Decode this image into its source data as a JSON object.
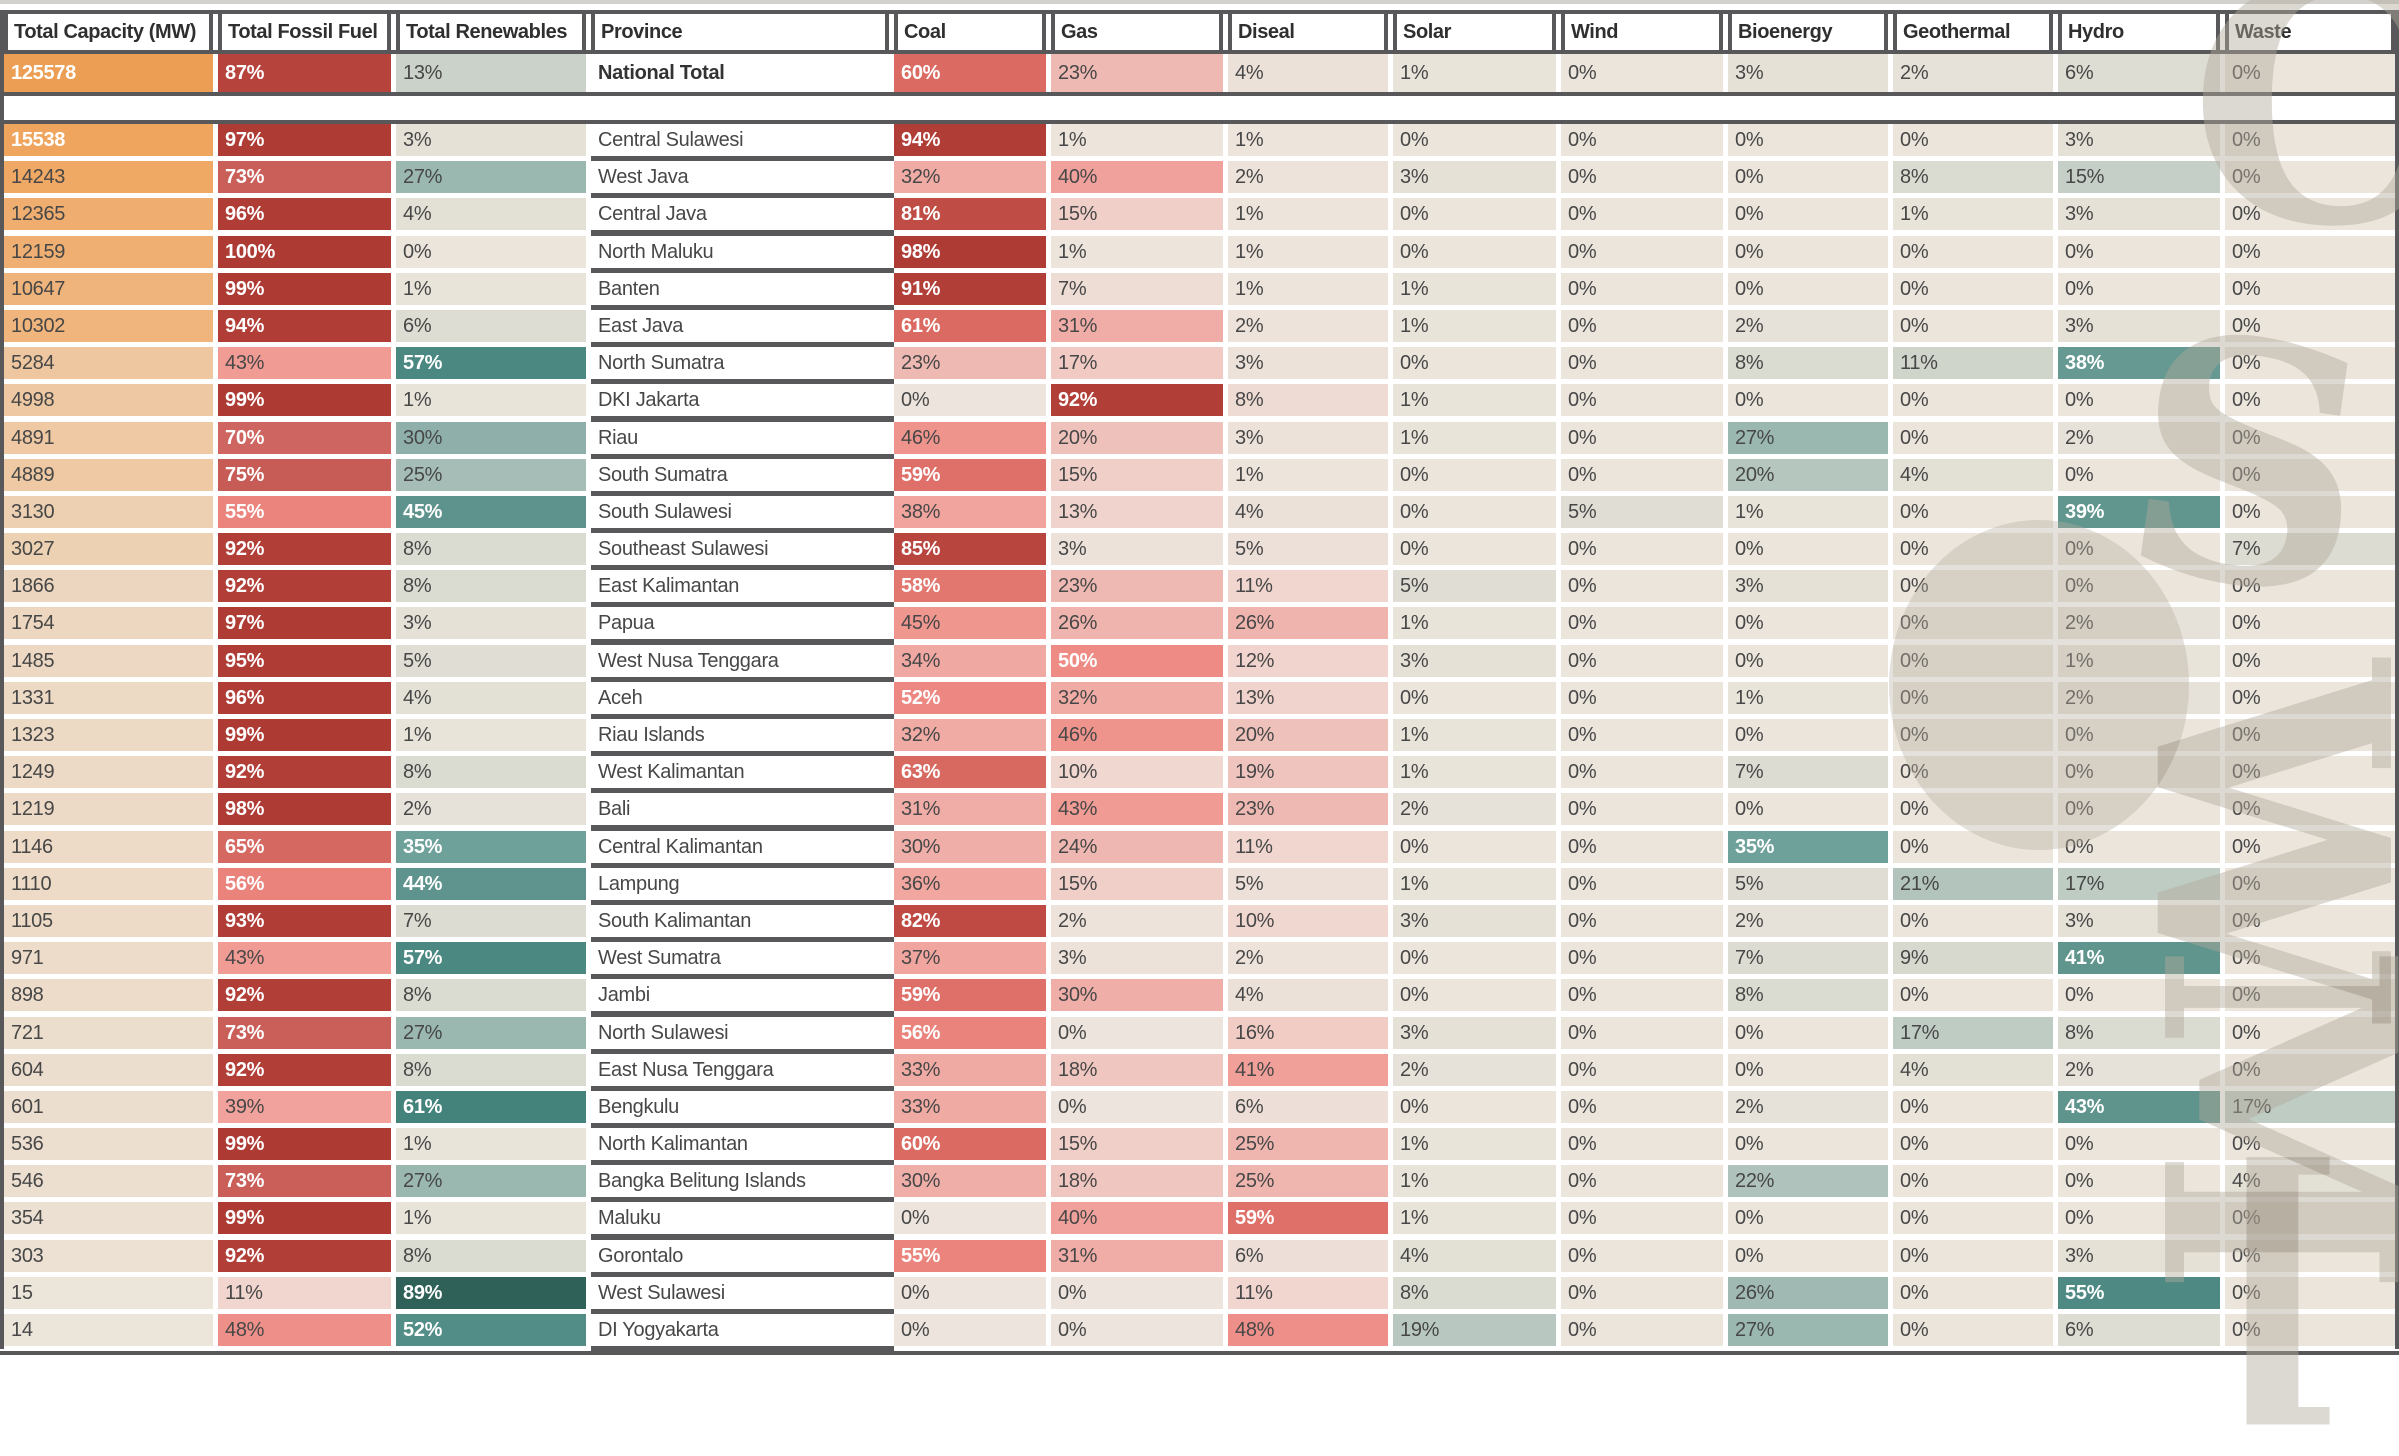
{
  "chart_data": {
    "type": "heatmap",
    "title": "Province power generation capacity and fuel mix heatmap table",
    "columns": [
      {
        "key": "capacity",
        "label": "Total Capacity (MW)",
        "scale": "orange",
        "unit": "MW"
      },
      {
        "key": "fossil",
        "label": "Total Fossil Fuel",
        "scale": "red",
        "unit": "%"
      },
      {
        "key": "renewables",
        "label": "Total Renewables",
        "scale": "teal",
        "unit": "%"
      },
      {
        "key": "province",
        "label": "Province",
        "scale": "none",
        "unit": ""
      },
      {
        "key": "coal",
        "label": "Coal",
        "scale": "red",
        "unit": "%"
      },
      {
        "key": "gas",
        "label": "Gas",
        "scale": "red",
        "unit": "%"
      },
      {
        "key": "diseal",
        "label": "Diseal",
        "scale": "red",
        "unit": "%"
      },
      {
        "key": "solar",
        "label": "Solar",
        "scale": "teal",
        "unit": "%"
      },
      {
        "key": "wind",
        "label": "Wind",
        "scale": "teal",
        "unit": "%"
      },
      {
        "key": "bioenergy",
        "label": "Bioenergy",
        "scale": "teal",
        "unit": "%"
      },
      {
        "key": "geothermal",
        "label": "Geothermal",
        "scale": "teal",
        "unit": "%"
      },
      {
        "key": "hydro",
        "label": "Hydro",
        "scale": "teal",
        "unit": "%"
      },
      {
        "key": "waste",
        "label": "Waste",
        "scale": "teal",
        "unit": "%"
      }
    ],
    "national_total": {
      "province": "National Total",
      "capacity": 125578,
      "fossil": 87,
      "renewables": 13,
      "coal": 60,
      "gas": 23,
      "diseal": 4,
      "solar": 1,
      "wind": 0,
      "bioenergy": 3,
      "geothermal": 2,
      "hydro": 6,
      "waste": 0
    },
    "rows": [
      {
        "province": "Central Sulawesi",
        "capacity": 15538,
        "fossil": 97,
        "renewables": 3,
        "coal": 94,
        "gas": 1,
        "diseal": 1,
        "solar": 0,
        "wind": 0,
        "bioenergy": 0,
        "geothermal": 0,
        "hydro": 3,
        "waste": 0
      },
      {
        "province": "West Java",
        "capacity": 14243,
        "fossil": 73,
        "renewables": 27,
        "coal": 32,
        "gas": 40,
        "diseal": 2,
        "solar": 3,
        "wind": 0,
        "bioenergy": 0,
        "geothermal": 8,
        "hydro": 15,
        "waste": 0
      },
      {
        "province": "Central Java",
        "capacity": 12365,
        "fossil": 96,
        "renewables": 4,
        "coal": 81,
        "gas": 15,
        "diseal": 1,
        "solar": 0,
        "wind": 0,
        "bioenergy": 0,
        "geothermal": 1,
        "hydro": 3,
        "waste": 0
      },
      {
        "province": "North Maluku",
        "capacity": 12159,
        "fossil": 100,
        "renewables": 0,
        "coal": 98,
        "gas": 1,
        "diseal": 1,
        "solar": 0,
        "wind": 0,
        "bioenergy": 0,
        "geothermal": 0,
        "hydro": 0,
        "waste": 0
      },
      {
        "province": "Banten",
        "capacity": 10647,
        "fossil": 99,
        "renewables": 1,
        "coal": 91,
        "gas": 7,
        "diseal": 1,
        "solar": 1,
        "wind": 0,
        "bioenergy": 0,
        "geothermal": 0,
        "hydro": 0,
        "waste": 0
      },
      {
        "province": "East Java",
        "capacity": 10302,
        "fossil": 94,
        "renewables": 6,
        "coal": 61,
        "gas": 31,
        "diseal": 2,
        "solar": 1,
        "wind": 0,
        "bioenergy": 2,
        "geothermal": 0,
        "hydro": 3,
        "waste": 0
      },
      {
        "province": "North Sumatra",
        "capacity": 5284,
        "fossil": 43,
        "renewables": 57,
        "coal": 23,
        "gas": 17,
        "diseal": 3,
        "solar": 0,
        "wind": 0,
        "bioenergy": 8,
        "geothermal": 11,
        "hydro": 38,
        "waste": 0
      },
      {
        "province": "DKI Jakarta",
        "capacity": 4998,
        "fossil": 99,
        "renewables": 1,
        "coal": 0,
        "gas": 92,
        "diseal": 8,
        "solar": 1,
        "wind": 0,
        "bioenergy": 0,
        "geothermal": 0,
        "hydro": 0,
        "waste": 0
      },
      {
        "province": "Riau",
        "capacity": 4891,
        "fossil": 70,
        "renewables": 30,
        "coal": 46,
        "gas": 20,
        "diseal": 3,
        "solar": 1,
        "wind": 0,
        "bioenergy": 27,
        "geothermal": 0,
        "hydro": 2,
        "waste": 0
      },
      {
        "province": "South Sumatra",
        "capacity": 4889,
        "fossil": 75,
        "renewables": 25,
        "coal": 59,
        "gas": 15,
        "diseal": 1,
        "solar": 0,
        "wind": 0,
        "bioenergy": 20,
        "geothermal": 4,
        "hydro": 0,
        "waste": 0
      },
      {
        "province": "South Sulawesi",
        "capacity": 3130,
        "fossil": 55,
        "renewables": 45,
        "coal": 38,
        "gas": 13,
        "diseal": 4,
        "solar": 0,
        "wind": 5,
        "bioenergy": 1,
        "geothermal": 0,
        "hydro": 39,
        "waste": 0
      },
      {
        "province": "Southeast Sulawesi",
        "capacity": 3027,
        "fossil": 92,
        "renewables": 8,
        "coal": 85,
        "gas": 3,
        "diseal": 5,
        "solar": 0,
        "wind": 0,
        "bioenergy": 0,
        "geothermal": 0,
        "hydro": 0,
        "waste": 7
      },
      {
        "province": "East Kalimantan",
        "capacity": 1866,
        "fossil": 92,
        "renewables": 8,
        "coal": 58,
        "gas": 23,
        "diseal": 11,
        "solar": 5,
        "wind": 0,
        "bioenergy": 3,
        "geothermal": 0,
        "hydro": 0,
        "waste": 0
      },
      {
        "province": "Papua",
        "capacity": 1754,
        "fossil": 97,
        "renewables": 3,
        "coal": 45,
        "gas": 26,
        "diseal": 26,
        "solar": 1,
        "wind": 0,
        "bioenergy": 0,
        "geothermal": 0,
        "hydro": 2,
        "waste": 0
      },
      {
        "province": "West Nusa Tenggara",
        "capacity": 1485,
        "fossil": 95,
        "renewables": 5,
        "coal": 34,
        "gas": 50,
        "diseal": 12,
        "solar": 3,
        "wind": 0,
        "bioenergy": 0,
        "geothermal": 0,
        "hydro": 1,
        "waste": 0
      },
      {
        "province": "Aceh",
        "capacity": 1331,
        "fossil": 96,
        "renewables": 4,
        "coal": 52,
        "gas": 32,
        "diseal": 13,
        "solar": 0,
        "wind": 0,
        "bioenergy": 1,
        "geothermal": 0,
        "hydro": 2,
        "waste": 0
      },
      {
        "province": "Riau Islands",
        "capacity": 1323,
        "fossil": 99,
        "renewables": 1,
        "coal": 32,
        "gas": 46,
        "diseal": 20,
        "solar": 1,
        "wind": 0,
        "bioenergy": 0,
        "geothermal": 0,
        "hydro": 0,
        "waste": 0
      },
      {
        "province": "West Kalimantan",
        "capacity": 1249,
        "fossil": 92,
        "renewables": 8,
        "coal": 63,
        "gas": 10,
        "diseal": 19,
        "solar": 1,
        "wind": 0,
        "bioenergy": 7,
        "geothermal": 0,
        "hydro": 0,
        "waste": 0
      },
      {
        "province": "Bali",
        "capacity": 1219,
        "fossil": 98,
        "renewables": 2,
        "coal": 31,
        "gas": 43,
        "diseal": 23,
        "solar": 2,
        "wind": 0,
        "bioenergy": 0,
        "geothermal": 0,
        "hydro": 0,
        "waste": 0
      },
      {
        "province": "Central Kalimantan",
        "capacity": 1146,
        "fossil": 65,
        "renewables": 35,
        "coal": 30,
        "gas": 24,
        "diseal": 11,
        "solar": 0,
        "wind": 0,
        "bioenergy": 35,
        "geothermal": 0,
        "hydro": 0,
        "waste": 0
      },
      {
        "province": "Lampung",
        "capacity": 1110,
        "fossil": 56,
        "renewables": 44,
        "coal": 36,
        "gas": 15,
        "diseal": 5,
        "solar": 1,
        "wind": 0,
        "bioenergy": 5,
        "geothermal": 21,
        "hydro": 17,
        "waste": 0
      },
      {
        "province": "South Kalimantan",
        "capacity": 1105,
        "fossil": 93,
        "renewables": 7,
        "coal": 82,
        "gas": 2,
        "diseal": 10,
        "solar": 3,
        "wind": 0,
        "bioenergy": 2,
        "geothermal": 0,
        "hydro": 3,
        "waste": 0
      },
      {
        "province": "West Sumatra",
        "capacity": 971,
        "fossil": 43,
        "renewables": 57,
        "coal": 37,
        "gas": 3,
        "diseal": 2,
        "solar": 0,
        "wind": 0,
        "bioenergy": 7,
        "geothermal": 9,
        "hydro": 41,
        "waste": 0
      },
      {
        "province": "Jambi",
        "capacity": 898,
        "fossil": 92,
        "renewables": 8,
        "coal": 59,
        "gas": 30,
        "diseal": 4,
        "solar": 0,
        "wind": 0,
        "bioenergy": 8,
        "geothermal": 0,
        "hydro": 0,
        "waste": 0
      },
      {
        "province": "North Sulawesi",
        "capacity": 721,
        "fossil": 73,
        "renewables": 27,
        "coal": 56,
        "gas": 0,
        "diseal": 16,
        "solar": 3,
        "wind": 0,
        "bioenergy": 0,
        "geothermal": 17,
        "hydro": 8,
        "waste": 0
      },
      {
        "province": "East Nusa Tenggara",
        "capacity": 604,
        "fossil": 92,
        "renewables": 8,
        "coal": 33,
        "gas": 18,
        "diseal": 41,
        "solar": 2,
        "wind": 0,
        "bioenergy": 0,
        "geothermal": 4,
        "hydro": 2,
        "waste": 0
      },
      {
        "province": "Bengkulu",
        "capacity": 601,
        "fossil": 39,
        "renewables": 61,
        "coal": 33,
        "gas": 0,
        "diseal": 6,
        "solar": 0,
        "wind": 0,
        "bioenergy": 2,
        "geothermal": 0,
        "hydro": 43,
        "waste": 17
      },
      {
        "province": "North Kalimantan",
        "capacity": 536,
        "fossil": 99,
        "renewables": 1,
        "coal": 60,
        "gas": 15,
        "diseal": 25,
        "solar": 1,
        "wind": 0,
        "bioenergy": 0,
        "geothermal": 0,
        "hydro": 0,
        "waste": 0
      },
      {
        "province": "Bangka Belitung Islands",
        "capacity": 546,
        "fossil": 73,
        "renewables": 27,
        "coal": 30,
        "gas": 18,
        "diseal": 25,
        "solar": 1,
        "wind": 0,
        "bioenergy": 22,
        "geothermal": 0,
        "hydro": 0,
        "waste": 4
      },
      {
        "province": "Maluku",
        "capacity": 354,
        "fossil": 99,
        "renewables": 1,
        "coal": 0,
        "gas": 40,
        "diseal": 59,
        "solar": 1,
        "wind": 0,
        "bioenergy": 0,
        "geothermal": 0,
        "hydro": 0,
        "waste": 0
      },
      {
        "province": "Gorontalo",
        "capacity": 303,
        "fossil": 92,
        "renewables": 8,
        "coal": 55,
        "gas": 31,
        "diseal": 6,
        "solar": 4,
        "wind": 0,
        "bioenergy": 0,
        "geothermal": 0,
        "hydro": 3,
        "waste": 0
      },
      {
        "province": "West Sulawesi",
        "capacity": 15,
        "fossil": 11,
        "renewables": 89,
        "coal": 0,
        "gas": 0,
        "diseal": 11,
        "solar": 8,
        "wind": 0,
        "bioenergy": 26,
        "geothermal": 0,
        "hydro": 55,
        "waste": 0
      },
      {
        "province": "DI Yogyakarta",
        "capacity": 14,
        "fossil": 48,
        "renewables": 52,
        "coal": 0,
        "gas": 0,
        "diseal": 48,
        "solar": 19,
        "wind": 0,
        "bioenergy": 27,
        "geothermal": 0,
        "hydro": 6,
        "waste": 0
      }
    ]
  },
  "colors": {
    "border": "#58585A",
    "topbar": "#D3D1CE",
    "text_dark": "#474747",
    "text_white": "#FFFFFF",
    "red_ramp": [
      [
        0,
        "#EDE5DD"
      ],
      [
        5,
        "#ECE0D8"
      ],
      [
        10,
        "#F0D8D1"
      ],
      [
        15,
        "#F0CFC8"
      ],
      [
        23,
        "#EFB9B3"
      ],
      [
        31,
        "#F0ACA6"
      ],
      [
        40,
        "#F1A19B"
      ],
      [
        46,
        "#EF948D"
      ],
      [
        50,
        "#ED8B84"
      ],
      [
        56,
        "#E9837C"
      ],
      [
        60,
        "#DB6A62"
      ],
      [
        70,
        "#CE6560"
      ],
      [
        75,
        "#C75B55"
      ],
      [
        82,
        "#BF4A44"
      ],
      [
        85,
        "#B9453F"
      ],
      [
        91,
        "#B23E38"
      ],
      [
        100,
        "#AE3A34"
      ]
    ],
    "teal_ramp": [
      [
        0,
        "#EBE5DC"
      ],
      [
        3,
        "#E5E1D7"
      ],
      [
        5,
        "#E0DED4"
      ],
      [
        8,
        "#DADBD1"
      ],
      [
        11,
        "#D0D5CC"
      ],
      [
        13,
        "#CBD2C9"
      ],
      [
        17,
        "#BFCCC4"
      ],
      [
        20,
        "#B5C6BE"
      ],
      [
        25,
        "#A5BDB6"
      ],
      [
        27,
        "#9AB7B0"
      ],
      [
        30,
        "#8FB0AA"
      ],
      [
        35,
        "#6FA19B"
      ],
      [
        39,
        "#61968F"
      ],
      [
        44,
        "#5E948D"
      ],
      [
        50,
        "#578F89"
      ],
      [
        57,
        "#4A8881"
      ],
      [
        61,
        "#44837B"
      ],
      [
        89,
        "#2F6158"
      ],
      [
        100,
        "#2A5A52"
      ]
    ],
    "orange_low": "#ECE5DB",
    "orange_high": "#F0A55E",
    "orange_national": "#EC9E55",
    "white_text_red_threshold": 50,
    "white_text_teal_threshold": 33,
    "white_text_capacity_threshold": 15000
  },
  "watermark": {
    "glyphs": [
      "C",
      "S",
      "W",
      "M",
      "["
    ]
  }
}
